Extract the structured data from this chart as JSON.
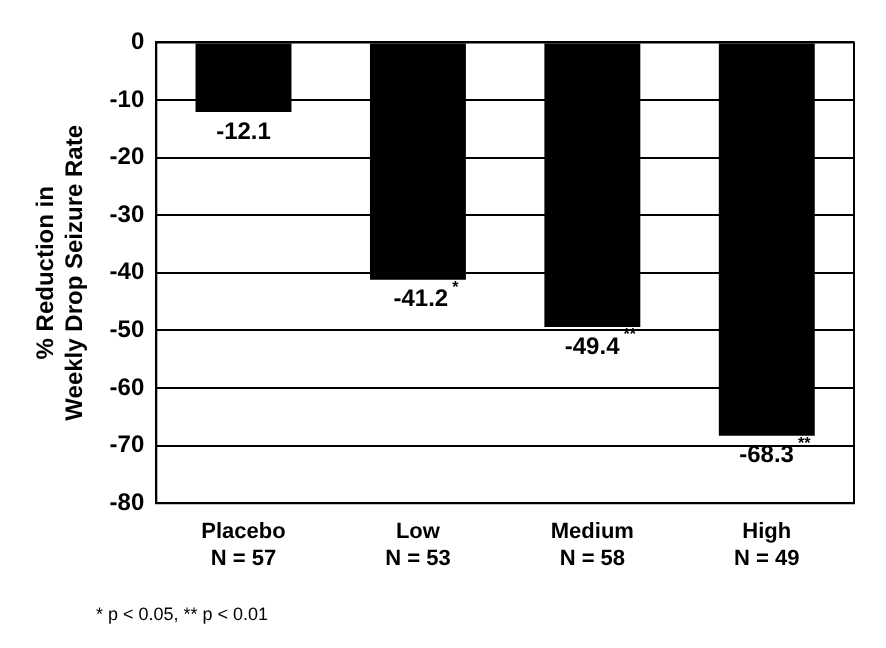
{
  "chart_data": {
    "type": "bar",
    "ylabel": "% Reduction in\nWeekly Drop Seizure Rate",
    "categories": [
      "Placebo\nN = 57",
      "Low\nN = 53",
      "Medium\nN = 58",
      "High\nN = 49"
    ],
    "values": [
      -12.1,
      -41.2,
      -49.4,
      -68.3
    ],
    "value_labels": [
      "-12.1",
      "-41.2$^{*}$",
      "-49.4$^{**}$",
      "-68.3$^{**}$"
    ],
    "color": "#000000",
    "ylim": [
      -80,
      0
    ],
    "yticks": [
      -80,
      -70,
      -60,
      -50,
      -40,
      -30,
      -20,
      -10,
      0
    ],
    "grid": "y",
    "legend": false,
    "annotations": [
      "* p < 0.05, ** p < 0.01"
    ]
  }
}
